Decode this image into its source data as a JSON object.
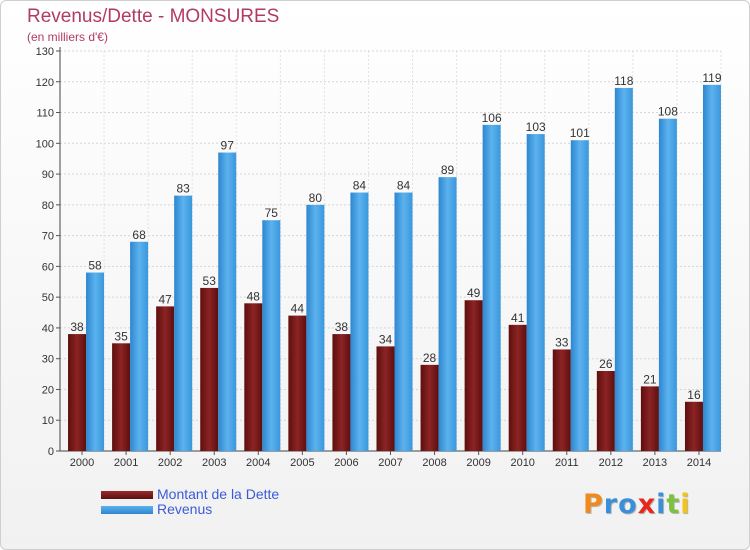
{
  "chart_data": {
    "type": "bar",
    "title": "Revenus/Dette - MONSURES",
    "subtitle": "(en milliers d'€)",
    "categories": [
      "2000",
      "2001",
      "2002",
      "2003",
      "2004",
      "2005",
      "2006",
      "2007",
      "2008",
      "2009",
      "2010",
      "2011",
      "2012",
      "2013",
      "2014"
    ],
    "series": [
      {
        "name": "Montant de la Dette",
        "color": "#7a1b1b",
        "values": [
          38,
          35,
          47,
          53,
          48,
          44,
          38,
          34,
          28,
          49,
          41,
          33,
          26,
          21,
          16
        ]
      },
      {
        "name": "Revenus",
        "color": "#3d9be0",
        "values": [
          58,
          68,
          83,
          97,
          75,
          80,
          84,
          84,
          89,
          106,
          103,
          101,
          118,
          108,
          119
        ]
      }
    ],
    "ylim": [
      0,
      130
    ],
    "yticks": [
      0,
      10,
      20,
      30,
      40,
      50,
      60,
      70,
      80,
      90,
      100,
      110,
      120,
      130
    ],
    "grid": true,
    "legend_position": "bottom-left"
  },
  "logo": {
    "letters": [
      "P",
      "r",
      "o",
      "x",
      "i",
      "t",
      "i"
    ],
    "colors": [
      "#f08a1c",
      "#3a8fd8",
      "#3a8fd8",
      "#e8261c",
      "#3a8fd8",
      "#7dc142",
      "#f0c419"
    ]
  }
}
